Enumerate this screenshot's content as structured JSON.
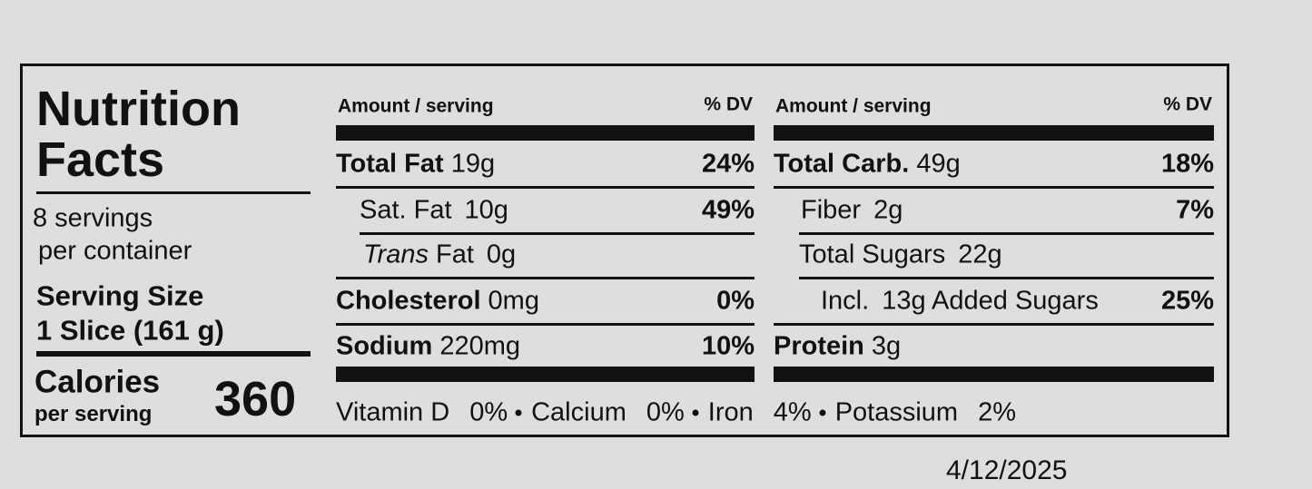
{
  "title": [
    "Nutrition",
    "Facts"
  ],
  "servings": [
    "8 servings",
    "per container"
  ],
  "serving_size": {
    "label": "Serving Size",
    "value": "1 Slice (161 g)"
  },
  "calories": {
    "label": "Calories",
    "sublabel": "per serving",
    "value": 360
  },
  "columns": [
    {
      "header": {
        "amount": "Amount / serving",
        "dv": "% DV"
      },
      "rows": [
        {
          "name": "Total Fat",
          "amount": "19g",
          "dv": "24%"
        },
        {
          "name": "Sat. Fat",
          "amount": "10g",
          "dv": "49%"
        },
        {
          "name_italic": "Trans",
          "name": "Fat",
          "amount": "0g"
        },
        {
          "name": "Cholesterol",
          "amount": "0mg",
          "dv": "0%"
        },
        {
          "name": "Sodium",
          "amount": "220mg",
          "dv": "10%"
        }
      ]
    },
    {
      "header": {
        "amount": "Amount / serving",
        "dv": "% DV"
      },
      "rows": [
        {
          "name": "Total Carb.",
          "amount": "49g",
          "dv": "18%"
        },
        {
          "name": "Fiber",
          "amount": "2g",
          "dv": "7%"
        },
        {
          "name": "Total Sugars",
          "amount": "22g"
        },
        {
          "name": "Incl.",
          "amount": "13g Added Sugars",
          "dv": "25%"
        },
        {
          "name": "Protein",
          "amount": "3g"
        }
      ]
    }
  ],
  "vitamins": [
    {
      "name": "Vitamin D",
      "dv": "0%"
    },
    {
      "name": "Calcium",
      "dv": "0%"
    },
    {
      "name": "Iron",
      "dv": "4%"
    },
    {
      "name": "Potassium",
      "dv": "2%"
    }
  ],
  "date": "4/12/2025"
}
